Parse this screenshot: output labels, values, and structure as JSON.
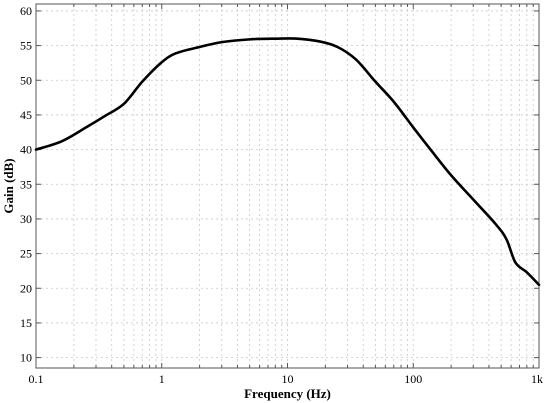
{
  "chart_data": {
    "type": "line",
    "xlabel": "Frequency (Hz)",
    "ylabel": "Gain (dB)",
    "xscale": "log",
    "xlim": [
      0.1,
      1000
    ],
    "ylim": [
      8.5,
      61
    ],
    "grid": true,
    "x_ticks": [
      {
        "value": 0.1,
        "label": "0.1"
      },
      {
        "value": 1,
        "label": "1"
      },
      {
        "value": 10,
        "label": "10"
      },
      {
        "value": 100,
        "label": "100"
      },
      {
        "value": 1000,
        "label": "1k"
      }
    ],
    "y_ticks": [
      10,
      15,
      20,
      25,
      30,
      35,
      40,
      45,
      50,
      55,
      60
    ],
    "series": [
      {
        "color": "#000000",
        "x": [
          0.1,
          0.16,
          0.25,
          0.35,
          0.5,
          0.7,
          1.0,
          1.3,
          2.0,
          3.0,
          5.0,
          8.0,
          12.0,
          18.0,
          25.0,
          35.0,
          50.0,
          70.0,
          100.0,
          140.0,
          200.0,
          300.0,
          450.0,
          550.0,
          650.0,
          800.0,
          1000.0
        ],
        "y": [
          40.0,
          41.2,
          43.2,
          44.8,
          46.6,
          49.8,
          52.6,
          53.9,
          54.8,
          55.5,
          55.9,
          56.0,
          56.0,
          55.6,
          54.8,
          53.0,
          49.8,
          46.9,
          43.2,
          39.8,
          36.3,
          32.8,
          29.3,
          27.1,
          23.7,
          22.3,
          20.5
        ]
      }
    ]
  }
}
